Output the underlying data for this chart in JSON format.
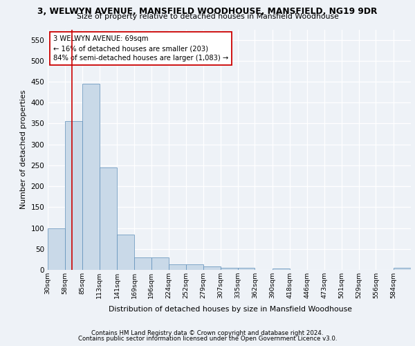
{
  "title_line1": "3, WELWYN AVENUE, MANSFIELD WOODHOUSE, MANSFIELD, NG19 9DR",
  "title_line2": "Size of property relative to detached houses in Mansfield Woodhouse",
  "xlabel": "Distribution of detached houses by size in Mansfield Woodhouse",
  "ylabel": "Number of detached properties",
  "footer_line1": "Contains HM Land Registry data © Crown copyright and database right 2024.",
  "footer_line2": "Contains public sector information licensed under the Open Government Licence v3.0.",
  "annotation_line1": "3 WELWYN AVENUE: 69sqm",
  "annotation_line2": "← 16% of detached houses are smaller (203)",
  "annotation_line3": "84% of semi-detached houses are larger (1,083) →",
  "bar_color": "#c9d9e8",
  "bar_edge_color": "#5b8db8",
  "redline_x": 69,
  "categories": [
    "30sqm",
    "58sqm",
    "85sqm",
    "113sqm",
    "141sqm",
    "169sqm",
    "196sqm",
    "224sqm",
    "252sqm",
    "279sqm",
    "307sqm",
    "335sqm",
    "362sqm",
    "390sqm",
    "418sqm",
    "446sqm",
    "473sqm",
    "501sqm",
    "529sqm",
    "556sqm",
    "584sqm"
  ],
  "bin_edges": [
    30,
    58,
    85,
    113,
    141,
    169,
    196,
    224,
    252,
    279,
    307,
    335,
    362,
    390,
    418,
    446,
    473,
    501,
    529,
    556,
    584,
    612
  ],
  "values": [
    100,
    355,
    445,
    245,
    85,
    30,
    30,
    13,
    13,
    8,
    5,
    5,
    0,
    4,
    0,
    0,
    0,
    0,
    0,
    0,
    5
  ],
  "ylim": [
    0,
    575
  ],
  "yticks": [
    0,
    50,
    100,
    150,
    200,
    250,
    300,
    350,
    400,
    450,
    500,
    550
  ],
  "background_color": "#eef2f7",
  "grid_color": "#ffffff",
  "annotation_box_color": "#ffffff",
  "annotation_box_edge": "#cc0000",
  "red_line_color": "#cc0000"
}
